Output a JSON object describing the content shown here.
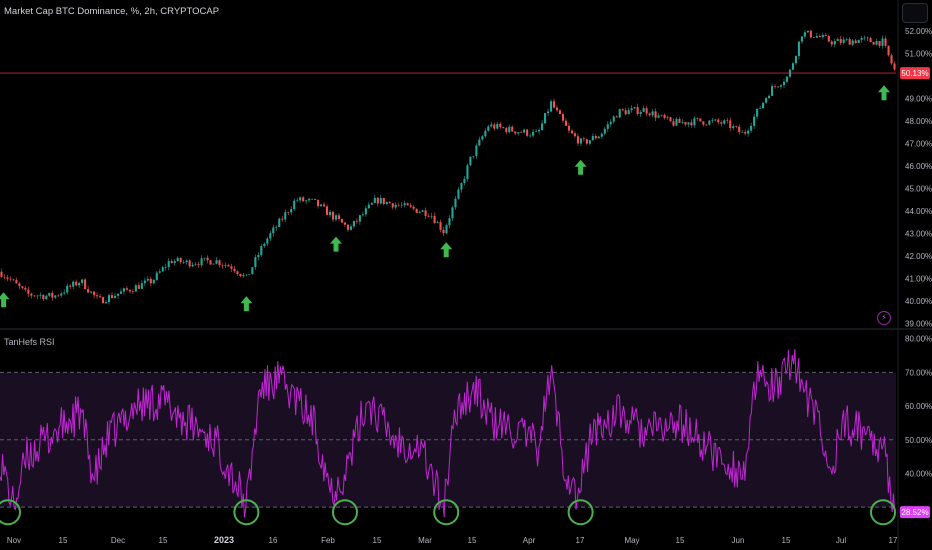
{
  "header": {
    "title": "Market Cap BTC Dominance, %, 2h, CRYPTOCAP"
  },
  "indicator": {
    "label": "TanHefs RSI"
  },
  "colors": {
    "background": "#000000",
    "candle_up": "#26a69a",
    "candle_down": "#ef5350",
    "rsi_line": "#c026d3",
    "rsi_band": "#1a0f22",
    "arrow": "#3fb950",
    "circle": "#4caf50",
    "price_line": "#f23645",
    "rsi_tag": "#e040fb"
  },
  "price_axis": {
    "labels": [
      "52.00%",
      "51.00%",
      "50.13%",
      "49.00%",
      "48.00%",
      "47.00%",
      "46.00%",
      "45.00%",
      "44.00%",
      "43.00%",
      "42.00%",
      "41.00%",
      "40.00%",
      "39.00%"
    ],
    "current": "50.13%"
  },
  "rsi_axis": {
    "labels": [
      "80.00%",
      "70.00%",
      "60.00%",
      "50.00%",
      "40.00%",
      "28.52%"
    ],
    "current": "28.52%"
  },
  "time_axis": {
    "labels": [
      "Nov",
      "15",
      "Dec",
      "15",
      "2023",
      "16",
      "Feb",
      "15",
      "Mar",
      "15",
      "Apr",
      "17",
      "May",
      "15",
      "Jun",
      "15",
      "Jul",
      "17"
    ]
  },
  "chart_data": {
    "type": "line",
    "main": {
      "series_kind": "candlestick",
      "ylim": [
        38.8,
        52.4
      ],
      "unit": "%",
      "current_value": 50.13,
      "path_keyframes": [
        {
          "t": 0.0,
          "v": 41.3
        },
        {
          "t": 0.01,
          "v": 41.0
        },
        {
          "t": 0.03,
          "v": 40.3
        },
        {
          "t": 0.06,
          "v": 40.2
        },
        {
          "t": 0.09,
          "v": 40.9
        },
        {
          "t": 0.11,
          "v": 40.0
        },
        {
          "t": 0.15,
          "v": 40.6
        },
        {
          "t": 0.17,
          "v": 40.9
        },
        {
          "t": 0.19,
          "v": 41.8
        },
        {
          "t": 0.21,
          "v": 41.7
        },
        {
          "t": 0.24,
          "v": 41.8
        },
        {
          "t": 0.26,
          "v": 41.5
        },
        {
          "t": 0.275,
          "v": 41.0
        },
        {
          "t": 0.295,
          "v": 42.6
        },
        {
          "t": 0.31,
          "v": 43.4
        },
        {
          "t": 0.33,
          "v": 44.5
        },
        {
          "t": 0.35,
          "v": 44.4
        },
        {
          "t": 0.37,
          "v": 43.8
        },
        {
          "t": 0.39,
          "v": 43.2
        },
        {
          "t": 0.42,
          "v": 44.5
        },
        {
          "t": 0.45,
          "v": 44.2
        },
        {
          "t": 0.48,
          "v": 43.9
        },
        {
          "t": 0.495,
          "v": 43.1
        },
        {
          "t": 0.51,
          "v": 44.6
        },
        {
          "t": 0.525,
          "v": 46.3
        },
        {
          "t": 0.545,
          "v": 47.8
        },
        {
          "t": 0.57,
          "v": 47.6
        },
        {
          "t": 0.6,
          "v": 47.4
        },
        {
          "t": 0.615,
          "v": 48.8
        },
        {
          "t": 0.635,
          "v": 47.5
        },
        {
          "t": 0.65,
          "v": 47.0
        },
        {
          "t": 0.67,
          "v": 47.4
        },
        {
          "t": 0.69,
          "v": 48.4
        },
        {
          "t": 0.72,
          "v": 48.5
        },
        {
          "t": 0.75,
          "v": 47.9
        },
        {
          "t": 0.78,
          "v": 48.0
        },
        {
          "t": 0.81,
          "v": 47.9
        },
        {
          "t": 0.83,
          "v": 47.4
        },
        {
          "t": 0.86,
          "v": 49.4
        },
        {
          "t": 0.88,
          "v": 50.0
        },
        {
          "t": 0.895,
          "v": 51.9
        },
        {
          "t": 0.91,
          "v": 51.8
        },
        {
          "t": 0.93,
          "v": 51.5
        },
        {
          "t": 0.96,
          "v": 51.6
        },
        {
          "t": 0.985,
          "v": 51.5
        },
        {
          "t": 1.0,
          "v": 50.1
        }
      ],
      "up_arrows_t": [
        0.004,
        0.275,
        0.375,
        0.498,
        0.648,
        0.997
      ]
    },
    "rsi": {
      "series_kind": "line",
      "ylim": [
        25,
        82
      ],
      "band": [
        30,
        70
      ],
      "midline": 50,
      "current_value": 28.52,
      "path_keyframes": [
        {
          "t": 0.0,
          "v": 45
        },
        {
          "t": 0.01,
          "v": 35
        },
        {
          "t": 0.015,
          "v": 30
        },
        {
          "t": 0.03,
          "v": 45
        },
        {
          "t": 0.06,
          "v": 52
        },
        {
          "t": 0.09,
          "v": 58
        },
        {
          "t": 0.105,
          "v": 38
        },
        {
          "t": 0.12,
          "v": 50
        },
        {
          "t": 0.15,
          "v": 60
        },
        {
          "t": 0.18,
          "v": 62
        },
        {
          "t": 0.21,
          "v": 55
        },
        {
          "t": 0.24,
          "v": 50
        },
        {
          "t": 0.262,
          "v": 38
        },
        {
          "t": 0.275,
          "v": 30
        },
        {
          "t": 0.29,
          "v": 65
        },
        {
          "t": 0.31,
          "v": 68
        },
        {
          "t": 0.33,
          "v": 62
        },
        {
          "t": 0.35,
          "v": 55
        },
        {
          "t": 0.37,
          "v": 35
        },
        {
          "t": 0.385,
          "v": 40
        },
        {
          "t": 0.41,
          "v": 62
        },
        {
          "t": 0.44,
          "v": 50
        },
        {
          "t": 0.47,
          "v": 48
        },
        {
          "t": 0.495,
          "v": 30
        },
        {
          "t": 0.51,
          "v": 60
        },
        {
          "t": 0.53,
          "v": 65
        },
        {
          "t": 0.55,
          "v": 55
        },
        {
          "t": 0.58,
          "v": 52
        },
        {
          "t": 0.6,
          "v": 48
        },
        {
          "t": 0.615,
          "v": 70
        },
        {
          "t": 0.63,
          "v": 42
        },
        {
          "t": 0.645,
          "v": 32
        },
        {
          "t": 0.66,
          "v": 52
        },
        {
          "t": 0.69,
          "v": 58
        },
        {
          "t": 0.72,
          "v": 52
        },
        {
          "t": 0.76,
          "v": 55
        },
        {
          "t": 0.8,
          "v": 45
        },
        {
          "t": 0.83,
          "v": 40
        },
        {
          "t": 0.845,
          "v": 68
        },
        {
          "t": 0.87,
          "v": 65
        },
        {
          "t": 0.885,
          "v": 76
        },
        {
          "t": 0.9,
          "v": 62
        },
        {
          "t": 0.915,
          "v": 55
        },
        {
          "t": 0.925,
          "v": 38
        },
        {
          "t": 0.94,
          "v": 55
        },
        {
          "t": 0.97,
          "v": 52
        },
        {
          "t": 0.985,
          "v": 48
        },
        {
          "t": 1.0,
          "v": 28.5
        }
      ],
      "oversold_circles_t": [
        0.008,
        0.275,
        0.385,
        0.498,
        0.648,
        0.997
      ]
    }
  }
}
